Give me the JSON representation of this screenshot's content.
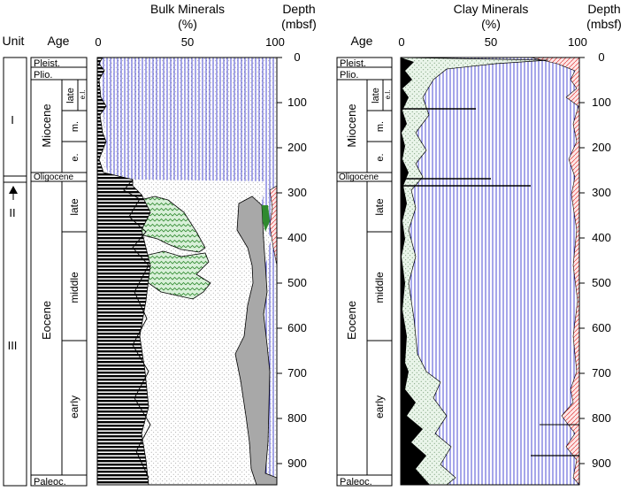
{
  "headers": {
    "unit": "Unit",
    "age": "Age",
    "bulk_title": "Bulk Minerals",
    "bulk_unit": "(%)",
    "clay_title": "Clay Minerals",
    "clay_unit": "(%)",
    "depth_title": "Depth",
    "depth_unit": "(mbsf)"
  },
  "percent_ticks": [
    "0",
    "50",
    "100"
  ],
  "depth_ticks": [
    "0",
    "100",
    "200",
    "300",
    "400",
    "500",
    "600",
    "700",
    "800",
    "900"
  ],
  "units": [
    "I",
    "II",
    "III"
  ],
  "ages": {
    "pleist": "Pleist.",
    "plio": "Plio.",
    "miocene": "Miocene",
    "miocene_late": "late",
    "miocene_el": "e.l.",
    "miocene_m": "m.",
    "miocene_e": "e.",
    "oligocene": "Oligocene",
    "eocene": "Eocene",
    "eocene_late": "late",
    "eocene_middle": "middle",
    "eocene_early": "early",
    "paleoc": "Paleoc."
  },
  "colors": {
    "blue": "#3a3ad0",
    "green": "#4caa4c",
    "red": "#e23c3c",
    "gray": "#a8a8a8",
    "stipple": "#777777",
    "black": "#000000"
  }
}
